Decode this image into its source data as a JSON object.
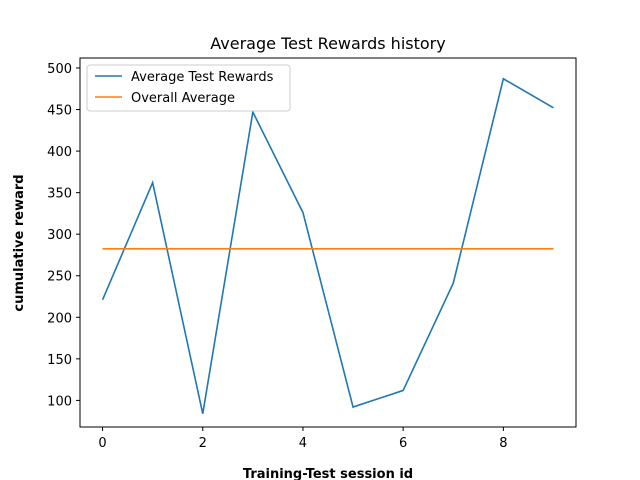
{
  "chart_data": {
    "type": "line",
    "title": "Average Test Rewards history",
    "xlabel": "Training-Test session id",
    "ylabel": "cumulative reward",
    "xlim": [
      -0.45,
      9.45
    ],
    "ylim": [
      68,
      512
    ],
    "xticks": [
      0,
      2,
      4,
      6,
      8
    ],
    "yticks": [
      100,
      150,
      200,
      250,
      300,
      350,
      400,
      450,
      500
    ],
    "x": [
      0,
      1,
      2,
      3,
      4,
      5,
      6,
      7,
      8,
      9
    ],
    "series": [
      {
        "name": "Average Test Rewards",
        "color": "#1f77b4",
        "values": [
          221,
          362,
          84,
          447,
          326,
          92,
          112,
          241,
          487,
          452
        ]
      },
      {
        "name": "Overall Average",
        "color": "#ff7f0e",
        "values": [
          282.4,
          282.4,
          282.4,
          282.4,
          282.4,
          282.4,
          282.4,
          282.4,
          282.4,
          282.4
        ]
      }
    ],
    "legend_position": "top-left",
    "grid": false
  }
}
